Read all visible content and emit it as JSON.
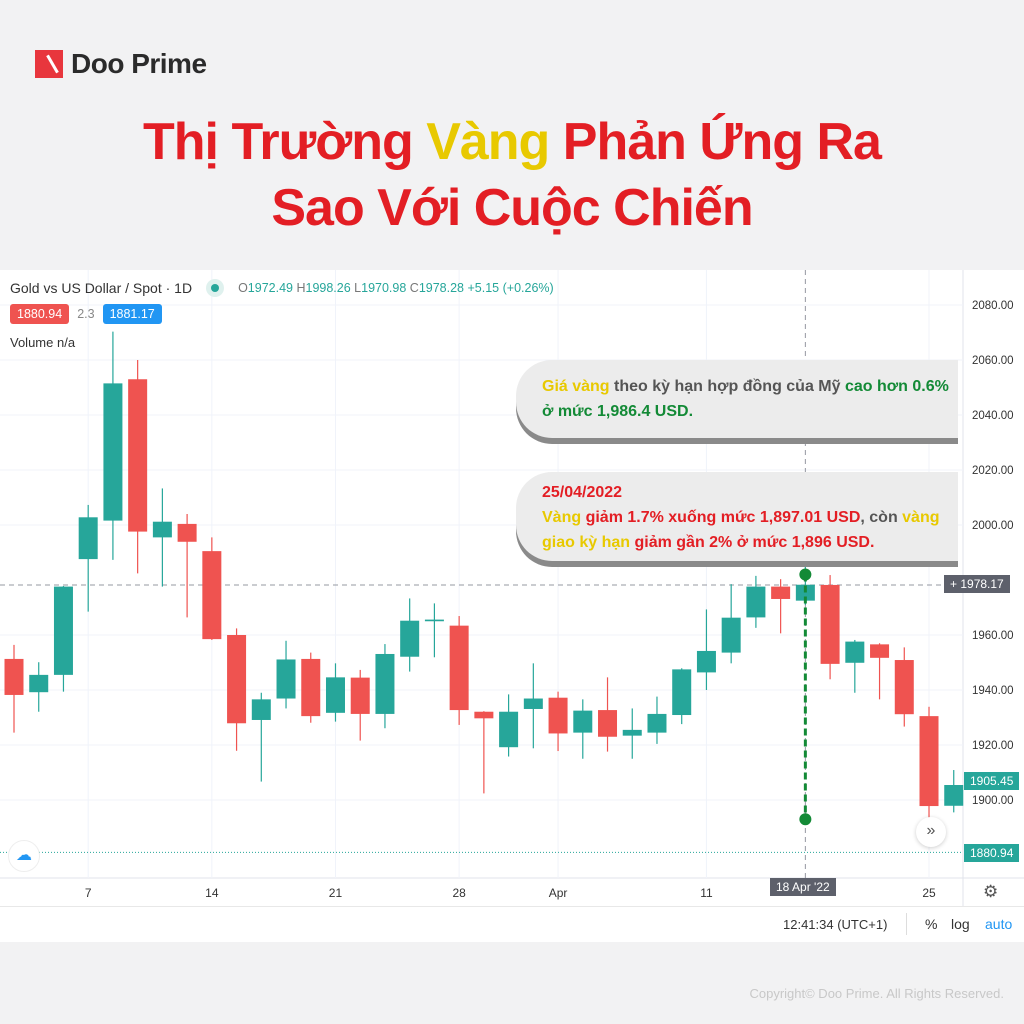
{
  "brand": {
    "name": "Doo Prime",
    "logo_color": "#e8363d"
  },
  "title": {
    "line1_a": "Thị Trường ",
    "line1_hl": "Vàng",
    "line1_b": " Phản Ứng Ra",
    "line2": "Sao Với Cuộc Chiến"
  },
  "legend": {
    "symbol": "Gold vs US Dollar / Spot · 1D",
    "o_label": "O",
    "o": "1972.49",
    "h_label": "H",
    "h": "1998.26",
    "l_label": "L",
    "l": "1970.98",
    "c_label": "C",
    "c": "1978.28",
    "change": "+5.15 (+0.26%)"
  },
  "badges": {
    "sell": "1880.94",
    "spread": "2.3",
    "buy": "1881.17"
  },
  "volume": "Volume  n/a",
  "annotations": {
    "a1": {
      "p1": "Giá vàng",
      "p2": " theo kỳ hạn hợp đồng của Mỹ ",
      "p3": "cao hơn 0.6% ở mức 1,986.4 USD."
    },
    "a2": {
      "date": "25/04/2022",
      "p1": "Vàng",
      "p2": " giảm 1.7% xuống mức 1,897.01 USD",
      "p3": ", còn ",
      "p4": "vàng giao kỳ hạn",
      "p5": " giảm gần 2% ở mức 1,896 USD."
    }
  },
  "price_tags": {
    "crosshair": "1978.17",
    "last": "1905.45",
    "bid": "1880.94",
    "crosshair_date": "18 Apr '22"
  },
  "bottom": {
    "time": "12:41:34 (UTC+1)",
    "percent": "%",
    "log": "log",
    "auto": "auto"
  },
  "icons": {
    "scroll": "double-chevron-right-icon",
    "settings": "gear-icon",
    "tv": "tradingview-logo-icon"
  },
  "copyright": "Copyright© Doo Prime. All Rights Reserved.",
  "colors": {
    "up": "#26a69a",
    "down": "#ef5350",
    "accent": "#2196f3",
    "annotation_line": "#138a36"
  },
  "chart_data": {
    "type": "candlestick",
    "title": "Gold vs US Dollar / Spot · 1D",
    "ylim": [
      1870,
      2090
    ],
    "y_ticks": [
      "2080.00",
      "2060.00",
      "2040.00",
      "2020.00",
      "2000.00",
      "1960.00",
      "1940.00",
      "1920.00",
      "1900.00"
    ],
    "x_ticks": [
      {
        "label": "7",
        "date": "2022-03-07"
      },
      {
        "label": "14",
        "date": "2022-03-14"
      },
      {
        "label": "21",
        "date": "2022-03-21"
      },
      {
        "label": "28",
        "date": "2022-03-28"
      },
      {
        "label": "Apr",
        "date": "2022-04-01"
      },
      {
        "label": "11",
        "date": "2022-04-11"
      },
      {
        "label": "25",
        "date": "2022-04-25"
      }
    ],
    "grid": true,
    "dates": [
      "2022-03-02",
      "2022-03-03",
      "2022-03-04",
      "2022-03-07",
      "2022-03-08",
      "2022-03-09",
      "2022-03-10",
      "2022-03-11",
      "2022-03-14",
      "2022-03-15",
      "2022-03-16",
      "2022-03-17",
      "2022-03-18",
      "2022-03-21",
      "2022-03-22",
      "2022-03-23",
      "2022-03-24",
      "2022-03-25",
      "2022-03-28",
      "2022-03-29",
      "2022-03-30",
      "2022-03-31",
      "2022-04-01",
      "2022-04-04",
      "2022-04-05",
      "2022-04-06",
      "2022-04-07",
      "2022-04-08",
      "2022-04-11",
      "2022-04-12",
      "2022-04-13",
      "2022-04-14",
      "2022-04-18",
      "2022-04-19",
      "2022-04-20",
      "2022-04-21",
      "2022-04-22",
      "2022-04-25",
      "2022-04-26"
    ],
    "ohlc": [
      [
        1951.3,
        1956.4,
        1924.5,
        1938.2
      ],
      [
        1939.2,
        1950.1,
        1932.1,
        1945.5
      ],
      [
        1945.5,
        1977.8,
        1939.4,
        1977.6
      ],
      [
        1987.6,
        2007.3,
        1968.5,
        2002.8
      ],
      [
        2001.6,
        2070.3,
        1987.3,
        2051.5
      ],
      [
        2053.0,
        2060.0,
        1982.4,
        1997.6
      ],
      [
        1995.5,
        2013.3,
        1977.6,
        2001.2
      ],
      [
        2000.4,
        2004.0,
        1966.4,
        1993.9
      ],
      [
        1990.5,
        1995.5,
        1958.2,
        1958.5
      ],
      [
        1960.0,
        1962.4,
        1917.9,
        1927.9
      ],
      [
        1929.1,
        1939.0,
        1906.7,
        1936.6
      ],
      [
        1936.9,
        1957.9,
        1933.3,
        1951.1
      ],
      [
        1951.3,
        1953.6,
        1928.1,
        1930.5
      ],
      [
        1931.7,
        1949.7,
        1928.5,
        1944.6
      ],
      [
        1944.5,
        1947.3,
        1921.6,
        1931.3
      ],
      [
        1931.3,
        1956.7,
        1926.1,
        1953.1
      ],
      [
        1952.1,
        1973.3,
        1946.7,
        1965.2
      ],
      [
        1965.0,
        1971.5,
        1951.9,
        1965.6
      ],
      [
        1963.4,
        1966.9,
        1927.3,
        1932.7
      ],
      [
        1932.1,
        1932.3,
        1902.4,
        1929.7
      ],
      [
        1919.2,
        1938.4,
        1915.8,
        1932.1
      ],
      [
        1933.1,
        1949.7,
        1918.8,
        1936.9
      ],
      [
        1937.2,
        1939.4,
        1917.8,
        1924.2
      ],
      [
        1924.5,
        1936.6,
        1915.0,
        1932.5
      ],
      [
        1932.7,
        1944.6,
        1917.6,
        1923.0
      ],
      [
        1923.4,
        1933.3,
        1915.0,
        1925.5
      ],
      [
        1924.5,
        1937.6,
        1920.4,
        1931.3
      ],
      [
        1930.9,
        1947.9,
        1927.6,
        1947.5
      ],
      [
        1946.4,
        1969.3,
        1940.0,
        1954.2
      ],
      [
        1953.6,
        1978.5,
        1949.7,
        1966.3
      ],
      [
        1966.4,
        1981.5,
        1962.6,
        1977.6
      ],
      [
        1977.6,
        1980.3,
        1960.6,
        1973.1
      ],
      [
        1972.49,
        1998.26,
        1970.98,
        1978.28
      ],
      [
        1978.2,
        1981.8,
        1943.9,
        1949.5
      ],
      [
        1949.9,
        1958.2,
        1939.0,
        1957.6
      ],
      [
        1956.6,
        1957.0,
        1936.6,
        1951.7
      ],
      [
        1950.9,
        1955.5,
        1926.7,
        1931.2
      ],
      [
        1930.5,
        1933.9,
        1893.3,
        1897.8
      ],
      [
        1897.9,
        1910.9,
        1895.5,
        1905.45
      ]
    ],
    "horizontal_lines": [
      {
        "value": 1978.17,
        "style": "dashed"
      },
      {
        "value": 1880.94,
        "style": "dotted"
      }
    ],
    "annotation_range": {
      "date": "2022-04-18",
      "from": 1982,
      "to": 1893
    }
  }
}
